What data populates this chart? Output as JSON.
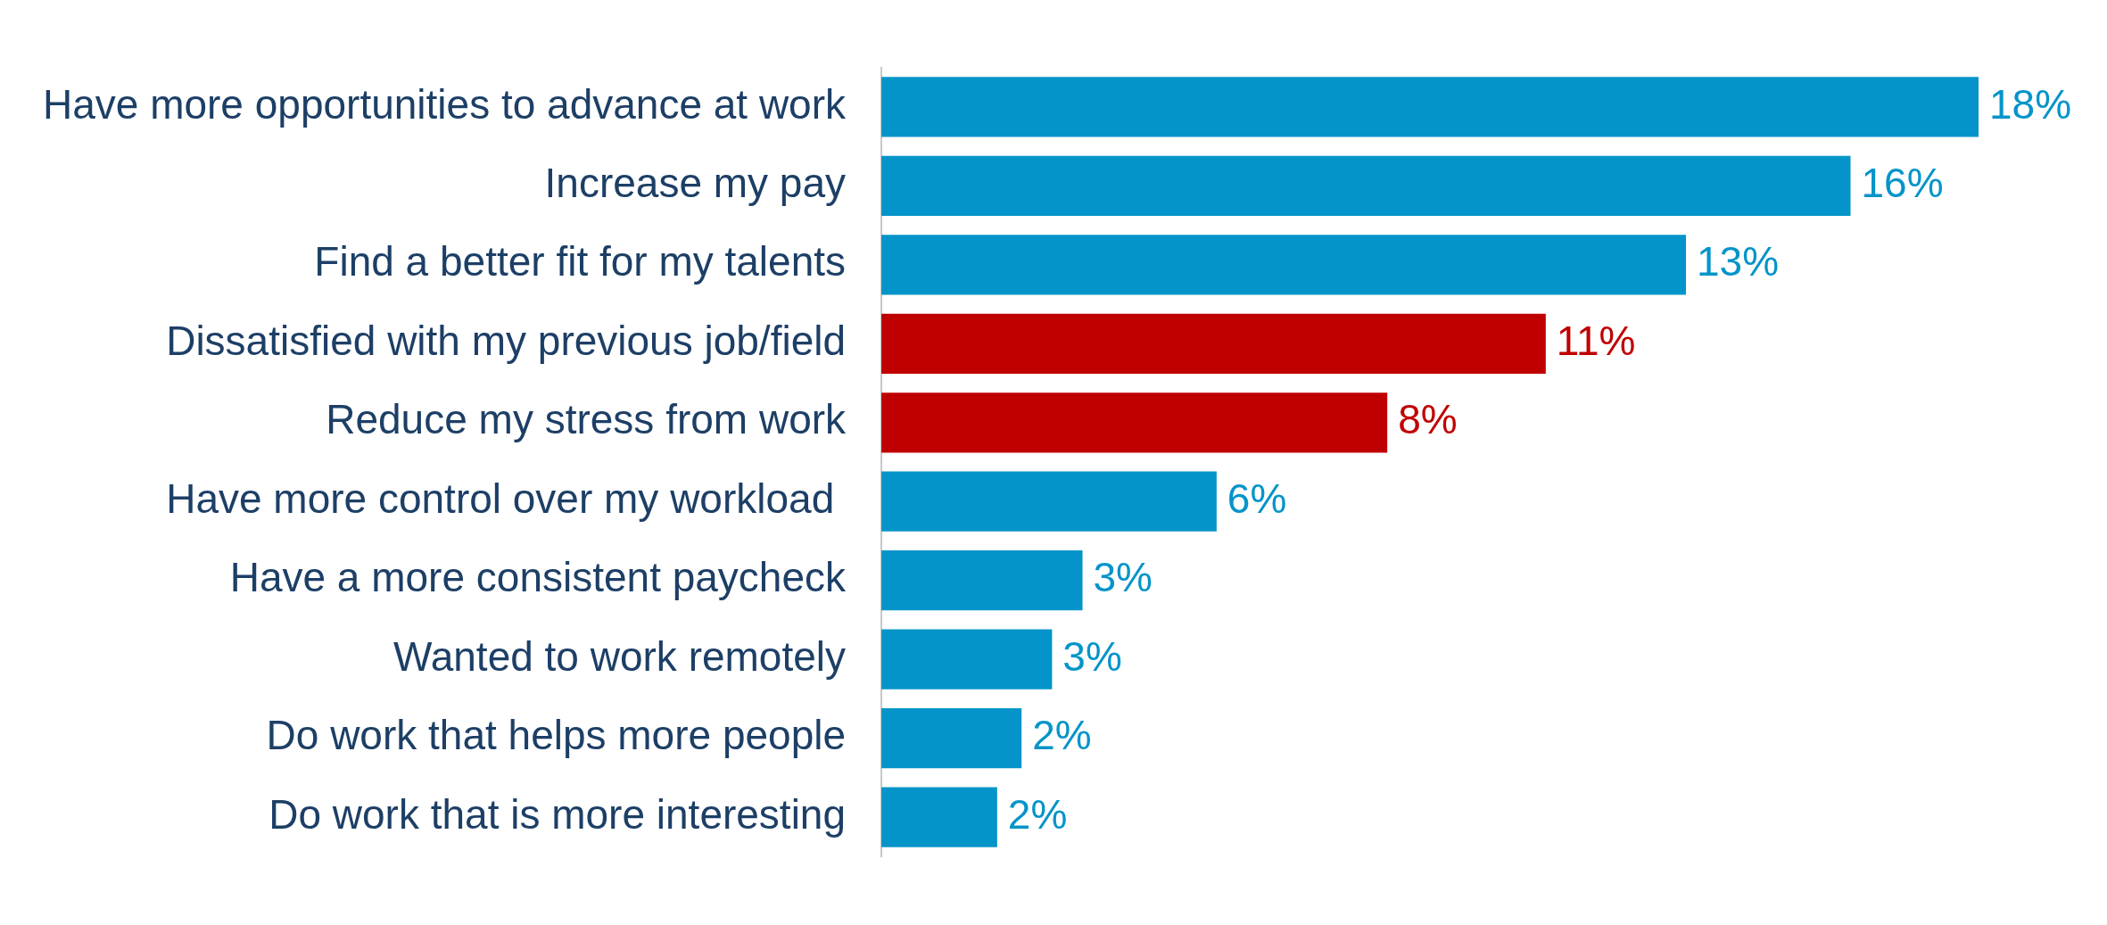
{
  "chart_data": {
    "type": "bar",
    "orientation": "horizontal",
    "categories": [
      "Have more opportunities to advance at work",
      "Increase my pay",
      "Find a better fit for my talents",
      "Dissatisfied with my previous job/field",
      "Reduce my stress from work",
      "Have more control over my workload ",
      "Have a more consistent paycheck",
      "Wanted to work remotely",
      "Do work that helps more people",
      "Do work that is more interesting"
    ],
    "values": [
      18.0,
      15.9,
      13.2,
      10.9,
      8.3,
      5.5,
      3.3,
      2.8,
      2.3,
      1.9
    ],
    "value_labels": [
      "18%",
      "16%",
      "13%",
      "11%",
      "8%",
      "6%",
      "3%",
      "3%",
      "2%",
      "2%"
    ],
    "colors": [
      "#0494c9",
      "#0494c9",
      "#0494c9",
      "#c00000",
      "#c00000",
      "#0494c9",
      "#0494c9",
      "#0494c9",
      "#0494c9",
      "#0494c9"
    ],
    "grid": false,
    "legend": false,
    "tick_labels": "y"
  }
}
